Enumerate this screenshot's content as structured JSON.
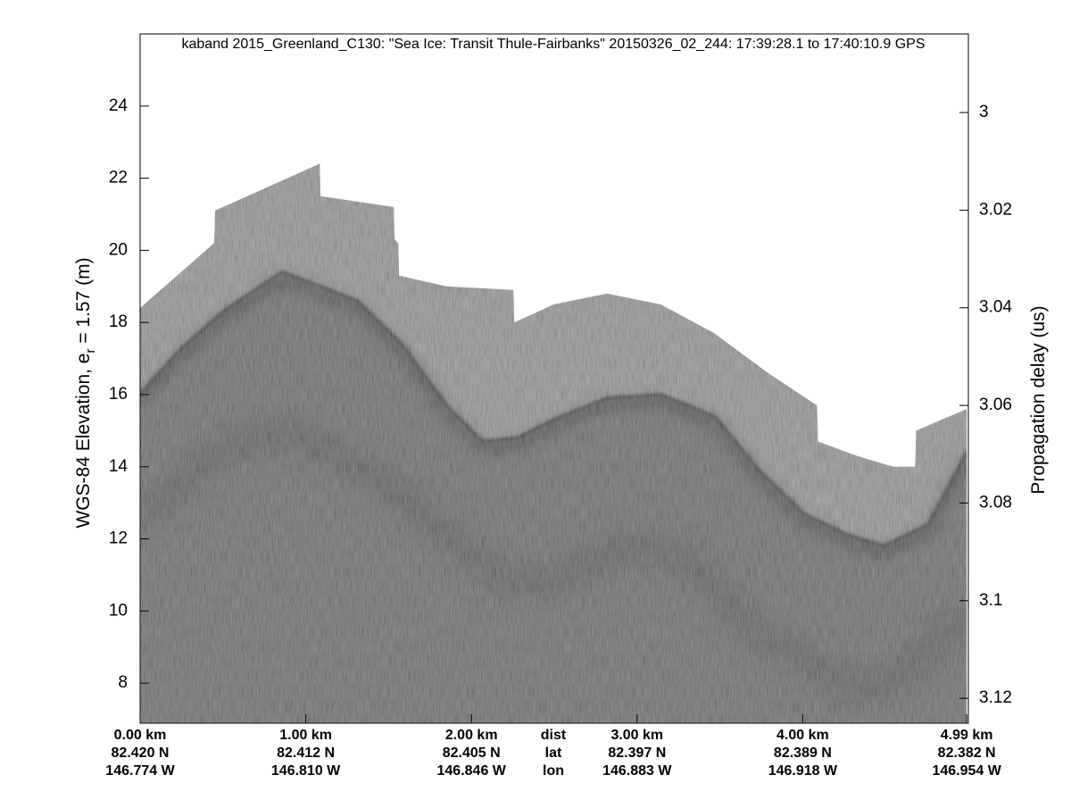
{
  "chart_data": {
    "type": "echogram",
    "title": "kaband 2015_Greenland_C130: \"Sea Ice: Transit Thule-Fairbanks\"  20150326_02_244: 17:39:28.1 to 17:40:10.9 GPS",
    "y_label": [
      "WGS-84 Elevation, e",
      "r",
      " = 1.57 (m)"
    ],
    "y2_label": "Propagation delay (us)",
    "xlim": [
      0,
      5.0
    ],
    "ylim": [
      6.89,
      26.0
    ],
    "y2lim": [
      3.1251,
      2.9839
    ],
    "yticks": [
      8,
      10,
      12,
      14,
      16,
      18,
      20,
      22,
      24
    ],
    "y2ticks": [
      3,
      3.02,
      3.04,
      3.06,
      3.08,
      3.1,
      3.12
    ],
    "xticks": [
      {
        "value": 0,
        "label": "0.00 km"
      },
      {
        "value": 1.0,
        "label": "1.00 km"
      },
      {
        "value": 2.0,
        "label": "2.00 km"
      },
      {
        "value": 3.0,
        "label": "3.00 km"
      },
      {
        "value": 4.0,
        "label": "4.00 km"
      },
      {
        "value": 4.99,
        "label": "4.99 km"
      }
    ],
    "lat_labels": [
      "82.420 N",
      "82.412 N",
      "82.405 N",
      "82.397 N",
      "82.389 N",
      "82.382 N"
    ],
    "lon_labels": [
      "146.774 W",
      "146.810 W",
      "146.846 W",
      "146.883 W",
      "146.918 W",
      "146.954 W"
    ],
    "row_labels": [
      "dist",
      "lat",
      "lon"
    ],
    "image_top": {
      "x": [
        0,
        0.447,
        0.453,
        1.084,
        1.089,
        1.531,
        1.536,
        1.558,
        1.563,
        1.849,
        2.253,
        2.259,
        2.496,
        2.819,
        3.143,
        3.466,
        3.79,
        4.086,
        4.092,
        4.329,
        4.544,
        4.679,
        4.685,
        4.99
      ],
      "values": [
        18.4,
        20.2,
        21.1,
        22.4,
        21.5,
        21.2,
        20.3,
        20.2,
        19.3,
        19.0,
        18.9,
        18.0,
        18.5,
        18.8,
        18.5,
        17.7,
        16.6,
        15.7,
        14.7,
        14.3,
        14.0,
        14.0,
        15.0,
        15.6
      ]
    },
    "surface": {
      "x": [
        0,
        0.232,
        0.501,
        0.857,
        1.31,
        1.58,
        1.849,
        2.065,
        2.28,
        2.496,
        2.819,
        3.143,
        3.466,
        3.736,
        4.005,
        4.275,
        4.491,
        4.76,
        4.99
      ],
      "values": [
        16.0,
        17.2,
        18.3,
        19.4,
        18.6,
        17.4,
        15.7,
        14.7,
        14.8,
        15.3,
        15.9,
        16.0,
        15.4,
        13.9,
        12.7,
        12.1,
        11.8,
        12.4,
        14.4
      ]
    },
    "deep_layer": {
      "x": [
        0,
        0.5,
        0.9,
        1.5,
        2.0,
        2.2,
        2.5,
        2.9,
        3.3,
        3.7,
        4.3,
        4.6,
        4.99
      ],
      "values": [
        12.5,
        14.5,
        15.0,
        13.5,
        11.5,
        10.8,
        10.8,
        11.8,
        11.5,
        9.5,
        7.8,
        8.2,
        10.0
      ]
    },
    "colors": {
      "noise": "#8b8b8b",
      "ice": "#5e5e5e",
      "surface": "#262626",
      "layer": "#3a3a3a",
      "axis": "#000000"
    }
  }
}
